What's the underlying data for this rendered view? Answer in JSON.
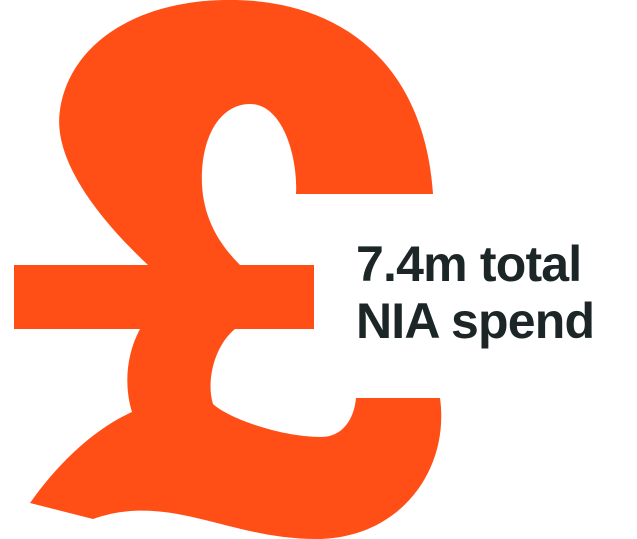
{
  "graphic": {
    "icon": "pound-sign-icon",
    "color": "#ff4f17"
  },
  "caption": {
    "line1": "7.4m total",
    "line2": "NIA spend",
    "color": "#1d2626"
  }
}
